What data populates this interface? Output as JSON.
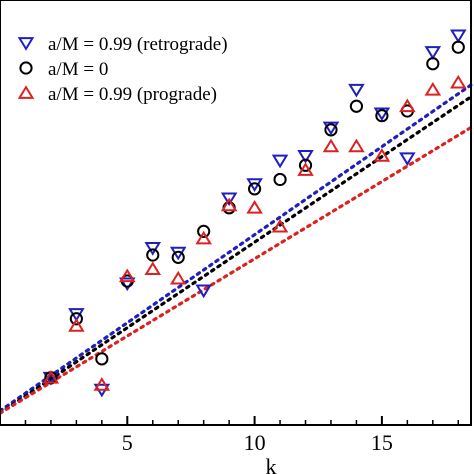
{
  "chart_data": {
    "type": "scatter",
    "title": "",
    "xlabel": "k",
    "ylabel": "",
    "xlim": [
      0,
      18.5
    ],
    "ylim": [
      0,
      18
    ],
    "xticks": [
      5,
      10,
      15
    ],
    "xtick_labels": [
      "5",
      "10",
      "15"
    ],
    "grid": false,
    "legend_position": "top-left",
    "series": [
      {
        "name": "a/M = 0.99 (retrograde)",
        "color": "#1f1fbf",
        "marker": "triangle-down",
        "trend": {
          "x": [
            0,
            18.5
          ],
          "y": [
            0.6,
            14.4
          ]
        },
        "points": [
          {
            "x": 2,
            "y": 2.0
          },
          {
            "x": 3,
            "y": 4.7
          },
          {
            "x": 4,
            "y": 1.5
          },
          {
            "x": 5,
            "y": 6.0
          },
          {
            "x": 6,
            "y": 7.5
          },
          {
            "x": 7,
            "y": 7.3
          },
          {
            "x": 8,
            "y": 5.7
          },
          {
            "x": 9,
            "y": 9.6
          },
          {
            "x": 10,
            "y": 10.2
          },
          {
            "x": 11,
            "y": 11.2
          },
          {
            "x": 12,
            "y": 11.4
          },
          {
            "x": 13,
            "y": 12.6
          },
          {
            "x": 14,
            "y": 14.2
          },
          {
            "x": 15,
            "y": 13.2
          },
          {
            "x": 16,
            "y": 11.3
          },
          {
            "x": 17,
            "y": 15.8
          },
          {
            "x": 18,
            "y": 16.5
          }
        ]
      },
      {
        "name": "a/M = 0",
        "color": "#000000",
        "marker": "circle",
        "trend": {
          "x": [
            0,
            18.5
          ],
          "y": [
            0.5,
            13.9
          ]
        },
        "points": [
          {
            "x": 2,
            "y": 2.0
          },
          {
            "x": 3,
            "y": 4.5
          },
          {
            "x": 4,
            "y": 2.8
          },
          {
            "x": 5,
            "y": 6.1
          },
          {
            "x": 6,
            "y": 7.2
          },
          {
            "x": 7,
            "y": 7.1
          },
          {
            "x": 8,
            "y": 8.2
          },
          {
            "x": 9,
            "y": 9.2
          },
          {
            "x": 10,
            "y": 10.0
          },
          {
            "x": 11,
            "y": 10.4
          },
          {
            "x": 12,
            "y": 11.0
          },
          {
            "x": 13,
            "y": 12.5
          },
          {
            "x": 14,
            "y": 13.5
          },
          {
            "x": 15,
            "y": 13.1
          },
          {
            "x": 16,
            "y": 13.3
          },
          {
            "x": 17,
            "y": 15.3
          },
          {
            "x": 18,
            "y": 16.0
          }
        ]
      },
      {
        "name": "a/M = 0.99 (prograde)",
        "color": "#dd2020",
        "marker": "triangle-up",
        "trend": {
          "x": [
            0,
            18.5
          ],
          "y": [
            0.5,
            12.6
          ]
        },
        "points": [
          {
            "x": 2,
            "y": 2.0
          },
          {
            "x": 3,
            "y": 4.2
          },
          {
            "x": 4,
            "y": 1.7
          },
          {
            "x": 5,
            "y": 6.3
          },
          {
            "x": 6,
            "y": 6.6
          },
          {
            "x": 7,
            "y": 6.2
          },
          {
            "x": 8,
            "y": 7.9
          },
          {
            "x": 9,
            "y": 9.3
          },
          {
            "x": 10,
            "y": 9.2
          },
          {
            "x": 11,
            "y": 8.4
          },
          {
            "x": 12,
            "y": 10.8
          },
          {
            "x": 13,
            "y": 11.8
          },
          {
            "x": 14,
            "y": 11.8
          },
          {
            "x": 15,
            "y": 11.4
          },
          {
            "x": 16,
            "y": 13.5
          },
          {
            "x": 17,
            "y": 14.2
          },
          {
            "x": 18,
            "y": 14.5
          }
        ]
      }
    ]
  }
}
